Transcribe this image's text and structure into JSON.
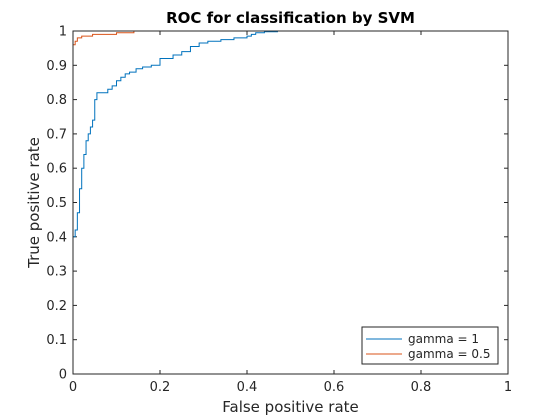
{
  "chart_data": {
    "type": "line",
    "title": "ROC for classification by SVM",
    "xlabel": "False positive rate",
    "ylabel": "True positive rate",
    "xlim": [
      0,
      1
    ],
    "ylim": [
      0,
      1
    ],
    "x_ticks": [
      "0",
      "0.2",
      "0.4",
      "0.6",
      "0.8",
      "1"
    ],
    "y_ticks": [
      "0",
      "0.1",
      "0.2",
      "0.3",
      "0.4",
      "0.5",
      "0.6",
      "0.7",
      "0.8",
      "0.9",
      "1"
    ],
    "grid": false,
    "legend_position": "bottom-right",
    "series": [
      {
        "name": "gamma = 1",
        "color": "#0072BD",
        "step": true,
        "x": [
          0,
          0,
          0.005,
          0.005,
          0.01,
          0.01,
          0.015,
          0.015,
          0.02,
          0.02,
          0.025,
          0.025,
          0.03,
          0.03,
          0.035,
          0.035,
          0.04,
          0.04,
          0.045,
          0.045,
          0.05,
          0.05,
          0.055,
          0.055,
          0.08,
          0.08,
          0.09,
          0.09,
          0.1,
          0.1,
          0.11,
          0.11,
          0.12,
          0.12,
          0.13,
          0.13,
          0.145,
          0.145,
          0.16,
          0.16,
          0.18,
          0.18,
          0.2,
          0.2,
          0.23,
          0.23,
          0.25,
          0.25,
          0.27,
          0.27,
          0.29,
          0.29,
          0.31,
          0.31,
          0.34,
          0.34,
          0.37,
          0.37,
          0.4,
          0.4,
          0.41,
          0.41,
          0.42,
          0.42,
          0.44,
          0.44,
          0.47,
          0.47,
          1
        ],
        "y": [
          0,
          0.4,
          0.4,
          0.42,
          0.42,
          0.47,
          0.47,
          0.54,
          0.54,
          0.6,
          0.6,
          0.64,
          0.64,
          0.68,
          0.68,
          0.7,
          0.7,
          0.72,
          0.72,
          0.74,
          0.74,
          0.8,
          0.8,
          0.82,
          0.82,
          0.83,
          0.83,
          0.84,
          0.84,
          0.855,
          0.855,
          0.865,
          0.865,
          0.875,
          0.875,
          0.88,
          0.88,
          0.89,
          0.89,
          0.895,
          0.895,
          0.9,
          0.9,
          0.92,
          0.92,
          0.93,
          0.93,
          0.94,
          0.94,
          0.955,
          0.955,
          0.965,
          0.965,
          0.97,
          0.97,
          0.975,
          0.975,
          0.98,
          0.98,
          0.985,
          0.985,
          0.99,
          0.99,
          0.995,
          0.995,
          0.998,
          0.998,
          1,
          1
        ]
      },
      {
        "name": "gamma = 0.5",
        "color": "#D95319",
        "step": true,
        "x": [
          0,
          0,
          0.005,
          0.005,
          0.01,
          0.01,
          0.02,
          0.02,
          0.045,
          0.045,
          0.1,
          0.1,
          0.14,
          0.14,
          1
        ],
        "y": [
          0,
          0.96,
          0.96,
          0.97,
          0.97,
          0.98,
          0.98,
          0.985,
          0.985,
          0.99,
          0.99,
          0.995,
          0.995,
          1,
          1
        ]
      }
    ]
  }
}
